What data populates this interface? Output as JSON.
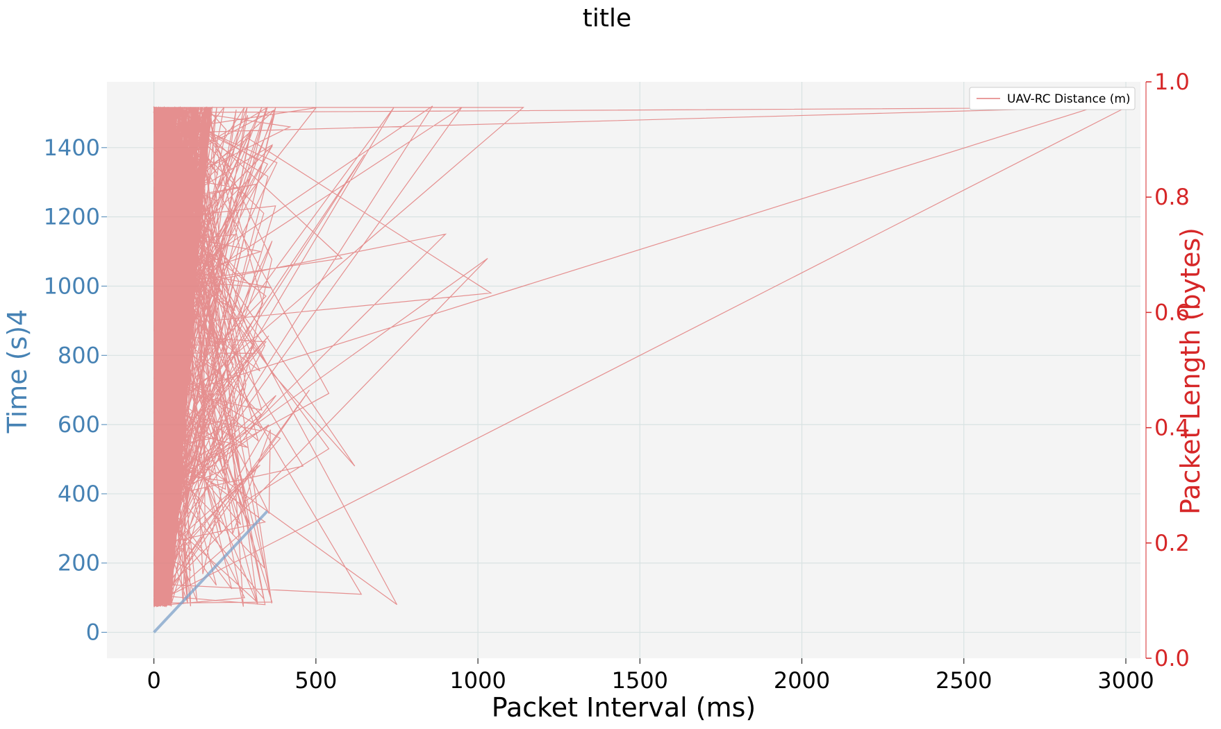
{
  "colors": {
    "left_axis": "#4682b4",
    "right_axis": "#d62728",
    "plot_bg": "#f4f4f4",
    "grid": "#d8e2e2",
    "series_time": "#7da2c9",
    "series_length": "#e27c7c"
  },
  "chart_data": {
    "type": "line",
    "title": "title",
    "xlabel": "Packet Interval (ms)",
    "ylabel": "Time (s)4",
    "ylabel_right": "Packet Length (bytes)",
    "xlim": [
      -145,
      3045
    ],
    "ylim": [
      -75,
      1590
    ],
    "ylim_right": [
      0.0,
      1.0
    ],
    "x_ticks": [
      0,
      500,
      1000,
      1500,
      2000,
      2500,
      3000
    ],
    "y_ticks": [
      0,
      200,
      400,
      600,
      800,
      1000,
      1200,
      1400
    ],
    "y_ticks_right": [
      "0.0",
      "0.2",
      "0.4",
      "0.6",
      "0.8",
      "1.0"
    ],
    "grid": true,
    "legend_position": "top-right",
    "legend": [
      "UAV-RC Distance (m)"
    ],
    "series": [
      {
        "axis": "left",
        "x": [
          0,
          50,
          100,
          150,
          200,
          250,
          300,
          350
        ],
        "y": [
          0,
          50,
          100,
          150,
          200,
          250,
          300,
          350
        ]
      },
      {
        "name": "UAV-RC Distance (m)",
        "axis": "left",
        "y_range": [
          74,
          1516
        ],
        "dense_x_range": [
          0,
          180
        ],
        "outliers": [
          [
            280,
            100
          ],
          [
            200,
            820
          ],
          [
            330,
            1100
          ],
          [
            640,
            110
          ],
          [
            750,
            80
          ],
          [
            950,
            1516
          ],
          [
            420,
            1460
          ],
          [
            900,
            1150
          ],
          [
            650,
            1380
          ],
          [
            1030,
            1080
          ],
          [
            500,
            1515
          ],
          [
            860,
            1520
          ],
          [
            740,
            1515
          ],
          [
            580,
            1080
          ],
          [
            1040,
            980
          ],
          [
            480,
            700
          ],
          [
            540,
            530
          ],
          [
            460,
            480
          ],
          [
            620,
            480
          ],
          [
            300,
            1450
          ],
          [
            540,
            690
          ],
          [
            390,
            560
          ],
          [
            2900,
            1516
          ],
          [
            1140,
            1516
          ],
          [
            3000,
            1516
          ]
        ]
      }
    ]
  }
}
